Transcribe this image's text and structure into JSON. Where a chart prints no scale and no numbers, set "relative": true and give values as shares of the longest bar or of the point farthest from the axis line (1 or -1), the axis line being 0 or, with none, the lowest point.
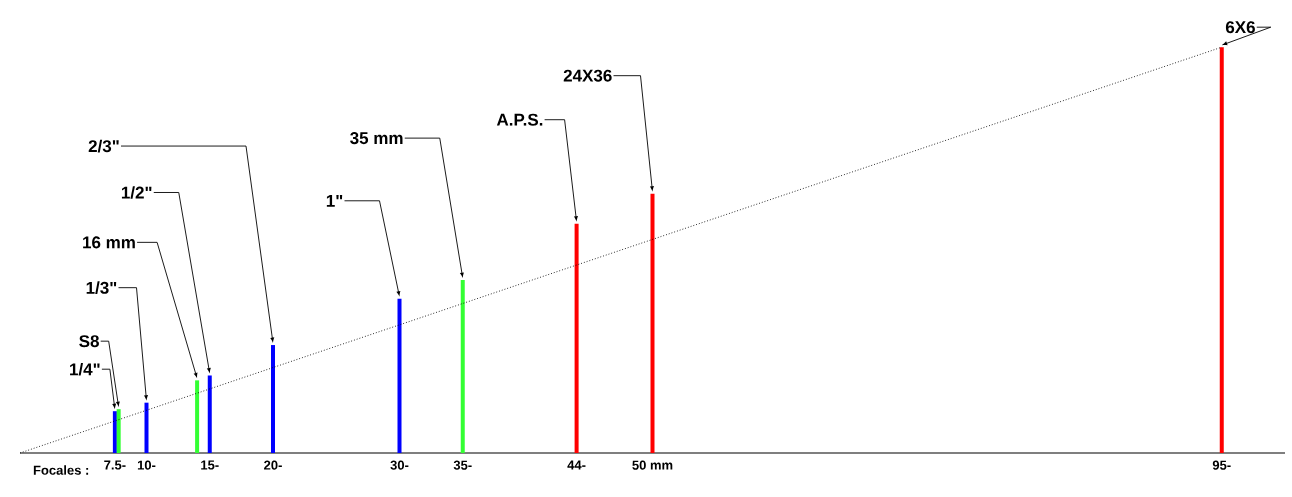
{
  "chart_data": {
    "type": "bar",
    "relative": true,
    "xlabel": "Focales :",
    "x": [
      7.5,
      7.8,
      10,
      14,
      15,
      20,
      30,
      35,
      44,
      50,
      95
    ],
    "series": [
      {
        "colors": [
          "#0000ff",
          "#33ff33",
          "#0000ff",
          "#33ff33",
          "#0000ff",
          "#0000ff",
          "#0000ff",
          "#33ff33",
          "#ff0000",
          "#ff0000",
          "#ff0000"
        ],
        "values": [
          0.103,
          0.108,
          0.124,
          0.179,
          0.191,
          0.266,
          0.38,
          0.426,
          0.565,
          0.639,
          1
        ]
      },
      {
        "type": "line",
        "x": [
          0,
          95
        ],
        "values": [
          0,
          1
        ],
        "color": "#000000",
        "line_style": "dotted"
      }
    ],
    "xlim": [
      0,
      100
    ],
    "xticks": [
      {
        "value": 7.5,
        "label": "7.5-"
      },
      {
        "value": 10,
        "label": "10-"
      },
      {
        "value": 15,
        "label": "15-"
      },
      {
        "value": 20,
        "label": "20-"
      },
      {
        "value": 30,
        "label": "30-"
      },
      {
        "value": 35,
        "label": "35-"
      },
      {
        "value": 44,
        "label": "44-"
      },
      {
        "value": 50,
        "label": "50 mm"
      },
      {
        "value": 95,
        "label": "95-"
      }
    ],
    "annotations": [
      {
        "text": "1/4\"",
        "x": 7.5,
        "y": 0.103
      },
      {
        "text": "S8",
        "x": 7.8,
        "y": 0.108
      },
      {
        "text": "1/3\"",
        "x": 10,
        "y": 0.124
      },
      {
        "text": "16 mm",
        "x": 14,
        "y": 0.179
      },
      {
        "text": "1/2\"",
        "x": 15,
        "y": 0.191
      },
      {
        "text": "2/3\"",
        "x": 20,
        "y": 0.266
      },
      {
        "text": "1\"",
        "x": 30,
        "y": 0.38
      },
      {
        "text": "35 mm",
        "x": 35,
        "y": 0.426
      },
      {
        "text": "A.P.S.",
        "x": 44,
        "y": 0.565
      },
      {
        "text": "24X36",
        "x": 50,
        "y": 0.639
      },
      {
        "text": "6X6",
        "x": 95,
        "y": 1
      }
    ]
  }
}
